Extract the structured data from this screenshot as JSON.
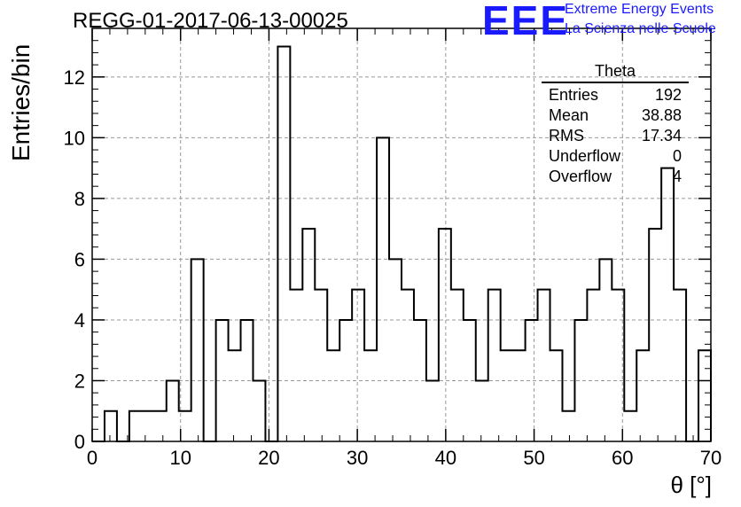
{
  "header": {
    "run_title": "REGG-01-2017-06-13-00025",
    "logo_text": "EEE",
    "logo_line1": "Extreme Energy Events",
    "logo_line2": "La Scienza nelle Scuole"
  },
  "stats_box": {
    "title": "Theta",
    "rows": [
      {
        "label": "Entries",
        "value": "192"
      },
      {
        "label": "Mean",
        "value": "38.88"
      },
      {
        "label": "RMS",
        "value": "17.34"
      },
      {
        "label": "Underflow",
        "value": "0"
      },
      {
        "label": "Overflow",
        "value": "4"
      }
    ]
  },
  "chart_data": {
    "type": "histogram",
    "xlabel": "θ [°]",
    "ylabel": "Entries/bin",
    "xlim": [
      0,
      70
    ],
    "ylim": [
      0,
      13.6
    ],
    "grid": true,
    "bin_width": 1.4,
    "x_ticks": [
      0,
      10,
      20,
      30,
      40,
      50,
      60,
      70
    ],
    "y_ticks": [
      0,
      2,
      4,
      6,
      8,
      10,
      12
    ],
    "values": [
      0,
      1,
      0,
      1,
      1,
      1,
      2,
      1,
      6,
      0,
      4,
      3,
      4,
      2,
      0,
      13,
      5,
      7,
      5,
      3,
      4,
      5,
      3,
      10,
      6,
      5,
      4,
      2,
      7,
      5,
      4,
      2,
      5,
      3,
      3,
      4,
      5,
      3,
      1,
      4,
      5,
      6,
      5,
      1,
      3,
      7,
      9,
      5,
      0,
      3
    ],
    "color": "#000000"
  }
}
